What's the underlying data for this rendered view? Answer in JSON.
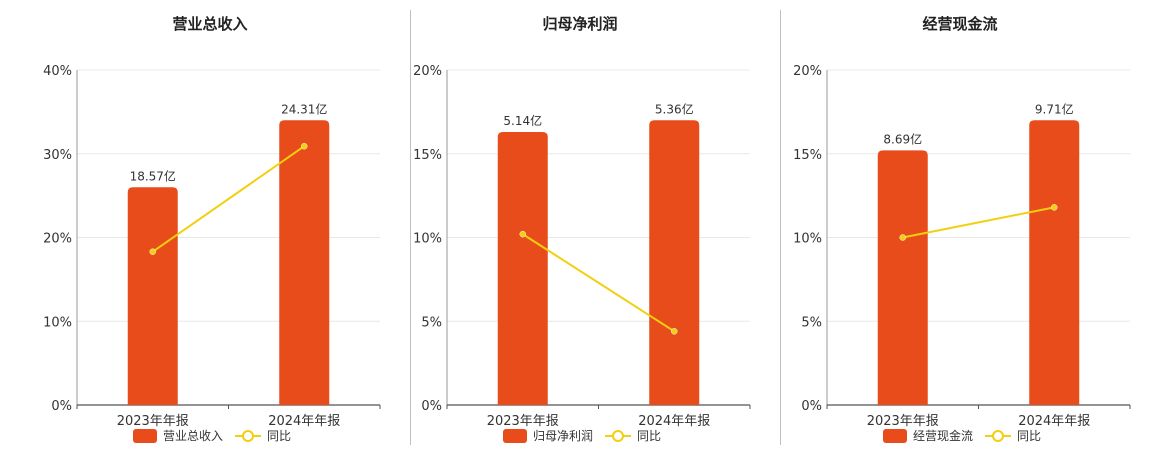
{
  "colors": {
    "bar": "#e84c1a",
    "line": "#f2cf0f",
    "grid": "#e8e8e8",
    "axis": "#555555"
  },
  "chart_data": [
    {
      "type": "bar",
      "title": "营业总收入",
      "categories": [
        "2023年年报",
        "2024年年报"
      ],
      "yticks": [
        "0%",
        "10%",
        "20%",
        "30%",
        "40%"
      ],
      "ylim": [
        0,
        40
      ],
      "bar_values": [
        26,
        34
      ],
      "bar_labels": [
        "18.57亿",
        "24.31亿"
      ],
      "line_values": [
        18.3,
        30.9
      ],
      "legend": [
        "营业总收入",
        "同比"
      ]
    },
    {
      "type": "bar",
      "title": "归母净利润",
      "categories": [
        "2023年年报",
        "2024年年报"
      ],
      "yticks": [
        "0%",
        "5%",
        "10%",
        "15%",
        "20%"
      ],
      "ylim": [
        0,
        20
      ],
      "bar_values": [
        16.3,
        17.0
      ],
      "bar_labels": [
        "5.14亿",
        "5.36亿"
      ],
      "line_values": [
        10.2,
        4.4
      ],
      "legend": [
        "归母净利润",
        "同比"
      ]
    },
    {
      "type": "bar",
      "title": "经营现金流",
      "categories": [
        "2023年年报",
        "2024年年报"
      ],
      "yticks": [
        "0%",
        "5%",
        "10%",
        "15%",
        "20%"
      ],
      "ylim": [
        0,
        20
      ],
      "bar_values": [
        15.2,
        17.0
      ],
      "bar_labels": [
        "8.69亿",
        "9.71亿"
      ],
      "line_values": [
        10.0,
        11.8
      ],
      "legend": [
        "经营现金流",
        "同比"
      ]
    }
  ]
}
